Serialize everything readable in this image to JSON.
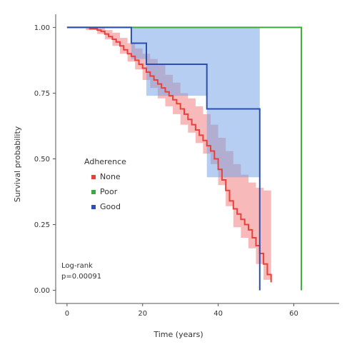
{
  "chart_data": {
    "type": "line",
    "title": "",
    "xlabel": "Time (years)",
    "ylabel": "Survival probability",
    "xlim": [
      -3,
      72
    ],
    "ylim": [
      -0.05,
      1.05
    ],
    "xticks": [
      0,
      20,
      40,
      60
    ],
    "yticks": [
      0.0,
      0.25,
      0.5,
      0.75,
      1.0
    ],
    "ytick_labels": [
      "0.00",
      "0.25",
      "0.50",
      "0.75",
      "1.00"
    ],
    "grid": false,
    "legend": {
      "title": "Adherence",
      "placement": "center-left",
      "entries": [
        "None",
        "Poor",
        "Good"
      ]
    },
    "annotation": {
      "line1": "Log-rank",
      "line2": "p=0.00091"
    },
    "series": [
      {
        "name": "None",
        "color": "#e8403a",
        "band_color": "#f08080",
        "steps": [
          [
            0,
            1.0
          ],
          [
            5,
            1.0
          ],
          [
            6,
            0.995
          ],
          [
            8,
            0.99
          ],
          [
            9,
            0.985
          ],
          [
            10,
            0.975
          ],
          [
            11,
            0.965
          ],
          [
            12,
            0.955
          ],
          [
            13,
            0.945
          ],
          [
            14,
            0.93
          ],
          [
            15,
            0.915
          ],
          [
            16,
            0.9
          ],
          [
            17,
            0.89
          ],
          [
            18,
            0.875
          ],
          [
            19,
            0.86
          ],
          [
            20,
            0.845
          ],
          [
            21,
            0.83
          ],
          [
            22,
            0.815
          ],
          [
            23,
            0.8
          ],
          [
            24,
            0.785
          ],
          [
            25,
            0.77
          ],
          [
            26,
            0.755
          ],
          [
            27,
            0.74
          ],
          [
            28,
            0.725
          ],
          [
            29,
            0.71
          ],
          [
            30,
            0.69
          ],
          [
            31,
            0.67
          ],
          [
            32,
            0.65
          ],
          [
            33,
            0.63
          ],
          [
            34,
            0.61
          ],
          [
            35,
            0.59
          ],
          [
            36,
            0.57
          ],
          [
            37,
            0.55
          ],
          [
            38,
            0.53
          ],
          [
            39,
            0.5
          ],
          [
            40,
            0.46
          ],
          [
            41,
            0.42
          ],
          [
            42,
            0.38
          ],
          [
            43,
            0.34
          ],
          [
            44,
            0.31
          ],
          [
            45,
            0.29
          ],
          [
            46,
            0.27
          ],
          [
            47,
            0.25
          ],
          [
            48,
            0.23
          ],
          [
            49,
            0.2
          ],
          [
            50,
            0.17
          ],
          [
            51,
            0.14
          ],
          [
            52,
            0.1
          ],
          [
            53,
            0.06
          ],
          [
            54,
            0.03
          ]
        ],
        "lower": [
          [
            0,
            1.0
          ],
          [
            5,
            0.99
          ],
          [
            8,
            0.975
          ],
          [
            10,
            0.955
          ],
          [
            12,
            0.93
          ],
          [
            14,
            0.9
          ],
          [
            16,
            0.87
          ],
          [
            18,
            0.84
          ],
          [
            20,
            0.8
          ],
          [
            22,
            0.77
          ],
          [
            24,
            0.73
          ],
          [
            26,
            0.7
          ],
          [
            28,
            0.67
          ],
          [
            30,
            0.63
          ],
          [
            32,
            0.6
          ],
          [
            34,
            0.56
          ],
          [
            36,
            0.52
          ],
          [
            38,
            0.48
          ],
          [
            40,
            0.4
          ],
          [
            42,
            0.32
          ],
          [
            44,
            0.24
          ],
          [
            46,
            0.2
          ],
          [
            48,
            0.16
          ],
          [
            50,
            0.1
          ],
          [
            52,
            0.04
          ],
          [
            54,
            0.0
          ]
        ],
        "upper": [
          [
            0,
            1.0
          ],
          [
            5,
            1.0
          ],
          [
            8,
            1.0
          ],
          [
            10,
            0.99
          ],
          [
            12,
            0.98
          ],
          [
            14,
            0.96
          ],
          [
            16,
            0.94
          ],
          [
            18,
            0.92
          ],
          [
            20,
            0.9
          ],
          [
            22,
            0.88
          ],
          [
            24,
            0.86
          ],
          [
            26,
            0.82
          ],
          [
            28,
            0.79
          ],
          [
            30,
            0.75
          ],
          [
            32,
            0.73
          ],
          [
            34,
            0.7
          ],
          [
            36,
            0.67
          ],
          [
            38,
            0.63
          ],
          [
            40,
            0.58
          ],
          [
            42,
            0.53
          ],
          [
            44,
            0.48
          ],
          [
            46,
            0.44
          ],
          [
            48,
            0.41
          ],
          [
            50,
            0.39
          ],
          [
            52,
            0.38
          ],
          [
            54,
            0.38
          ]
        ]
      },
      {
        "name": "Poor",
        "color": "#3aaa3a",
        "steps": [
          [
            0,
            1.0
          ],
          [
            62,
            1.0
          ],
          [
            62,
            0.0
          ]
        ]
      },
      {
        "name": "Good",
        "color": "#2b4fae",
        "band_color": "#7aa6e6",
        "steps": [
          [
            0,
            1.0
          ],
          [
            17,
            1.0
          ],
          [
            17,
            0.94
          ],
          [
            21,
            0.94
          ],
          [
            21,
            0.86
          ],
          [
            37,
            0.86
          ],
          [
            37,
            0.69
          ],
          [
            51,
            0.69
          ],
          [
            51,
            0.0
          ]
        ],
        "lower": [
          [
            0,
            1.0
          ],
          [
            17,
            0.99
          ],
          [
            17,
            0.88
          ],
          [
            21,
            0.88
          ],
          [
            21,
            0.74
          ],
          [
            37,
            0.74
          ],
          [
            37,
            0.43
          ],
          [
            51,
            0.43
          ],
          [
            51,
            0.0
          ]
        ],
        "upper": [
          [
            0,
            1.0
          ],
          [
            17,
            1.0
          ],
          [
            51,
            1.0
          ]
        ]
      }
    ]
  }
}
